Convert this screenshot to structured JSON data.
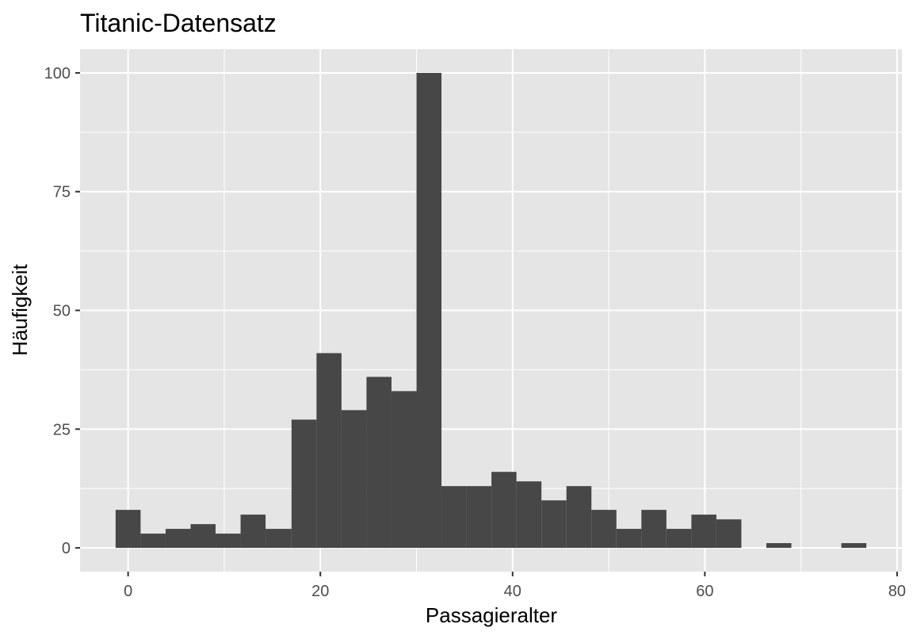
{
  "chart_data": {
    "type": "bar",
    "title": "Titanic-Datensatz",
    "xlabel": "Passagieralter",
    "ylabel": "Häufigkeit",
    "xlim": [
      -5,
      80.5
    ],
    "ylim": [
      -5,
      105
    ],
    "x_ticks": [
      "0",
      "20",
      "40",
      "60",
      "80"
    ],
    "y_ticks": [
      "0",
      "25",
      "50",
      "75",
      "100"
    ],
    "grid": true,
    "colors": {
      "panel": "#e5e5e5",
      "grid": "#ffffff",
      "bar": "#474747",
      "tick": "#4d4d4d",
      "text": "#000000"
    },
    "bins": [
      {
        "x0": -1.3,
        "x1": 1.3,
        "count": 8
      },
      {
        "x0": 1.3,
        "x1": 3.9,
        "count": 3
      },
      {
        "x0": 3.9,
        "x1": 6.5,
        "count": 4
      },
      {
        "x0": 6.5,
        "x1": 9.1,
        "count": 5
      },
      {
        "x0": 9.1,
        "x1": 11.7,
        "count": 3
      },
      {
        "x0": 11.7,
        "x1": 14.3,
        "count": 7
      },
      {
        "x0": 14.3,
        "x1": 17.0,
        "count": 4
      },
      {
        "x0": 17.0,
        "x1": 19.6,
        "count": 27
      },
      {
        "x0": 19.6,
        "x1": 22.2,
        "count": 41
      },
      {
        "x0": 22.2,
        "x1": 24.8,
        "count": 29
      },
      {
        "x0": 24.8,
        "x1": 27.4,
        "count": 36
      },
      {
        "x0": 27.4,
        "x1": 30.0,
        "count": 33
      },
      {
        "x0": 30.0,
        "x1": 32.6,
        "count": 100
      },
      {
        "x0": 32.6,
        "x1": 35.2,
        "count": 13
      },
      {
        "x0": 35.2,
        "x1": 37.8,
        "count": 13
      },
      {
        "x0": 37.8,
        "x1": 40.4,
        "count": 16
      },
      {
        "x0": 40.4,
        "x1": 43.0,
        "count": 14
      },
      {
        "x0": 43.0,
        "x1": 45.6,
        "count": 10
      },
      {
        "x0": 45.6,
        "x1": 48.2,
        "count": 13
      },
      {
        "x0": 48.2,
        "x1": 50.8,
        "count": 8
      },
      {
        "x0": 50.8,
        "x1": 53.4,
        "count": 4
      },
      {
        "x0": 53.4,
        "x1": 56.0,
        "count": 8
      },
      {
        "x0": 56.0,
        "x1": 58.6,
        "count": 4
      },
      {
        "x0": 58.6,
        "x1": 61.2,
        "count": 7
      },
      {
        "x0": 61.2,
        "x1": 63.8,
        "count": 6
      },
      {
        "x0": 63.8,
        "x1": 66.4,
        "count": 0
      },
      {
        "x0": 66.4,
        "x1": 69.0,
        "count": 1
      },
      {
        "x0": 69.0,
        "x1": 71.6,
        "count": 0
      },
      {
        "x0": 71.6,
        "x1": 74.2,
        "count": 0
      },
      {
        "x0": 74.2,
        "x1": 76.8,
        "count": 1
      }
    ]
  }
}
